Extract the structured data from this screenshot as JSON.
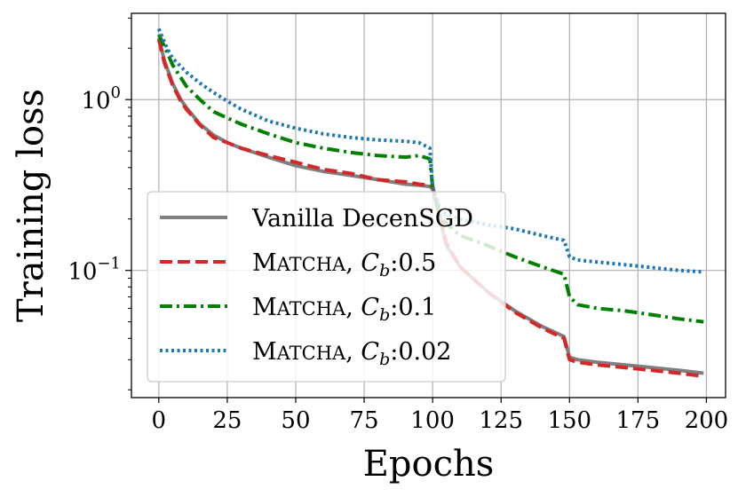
{
  "chart_data": {
    "type": "line",
    "title": "",
    "xlabel": "Epochs",
    "ylabel": "Training loss",
    "xlim": [
      -10,
      207
    ],
    "ylim": [
      0.018,
      3.2
    ],
    "yscale": "log",
    "grid": true,
    "x_ticks": [
      0,
      25,
      50,
      75,
      100,
      125,
      150,
      175,
      200
    ],
    "x_tick_labels": [
      "0",
      "25",
      "50",
      "75",
      "100",
      "125",
      "150",
      "175",
      "200"
    ],
    "y_ticks": [
      {
        "value": 1.0,
        "base": "10",
        "exponent": "0"
      },
      {
        "value": 0.1,
        "base": "10",
        "exponent": "−1"
      }
    ],
    "legend": {
      "position": "lower-left",
      "entries": [
        {
          "label": "Vanilla DecenSGD",
          "name_lead": "",
          "name_caps": "",
          "param": ""
        },
        {
          "label": "MATCHA, Cb:0.5",
          "name_lead": "M",
          "name_caps": "ATCHA",
          "param": ":0.5"
        },
        {
          "label": "MATCHA, Cb:0.1",
          "name_lead": "M",
          "name_caps": "ATCHA",
          "param": ":0.1"
        },
        {
          "label": "MATCHA, Cb:0.02",
          "name_lead": "M",
          "name_caps": "ATCHA",
          "param": ":0.02"
        }
      ]
    },
    "series": [
      {
        "name": "Vanilla DecenSGD",
        "color": "#7f7f7f",
        "style": "solid",
        "x": [
          0,
          2,
          5,
          8,
          10,
          15,
          20,
          25,
          30,
          40,
          50,
          60,
          70,
          80,
          90,
          95,
          99,
          100,
          105,
          110,
          120,
          130,
          140,
          148,
          150,
          153,
          160,
          170,
          180,
          190,
          199
        ],
        "y": [
          2.3,
          1.7,
          1.25,
          1.0,
          0.9,
          0.72,
          0.62,
          0.56,
          0.52,
          0.46,
          0.41,
          0.38,
          0.36,
          0.34,
          0.32,
          0.315,
          0.31,
          0.3,
          0.14,
          0.105,
          0.075,
          0.058,
          0.047,
          0.041,
          0.031,
          0.03,
          0.029,
          0.028,
          0.027,
          0.026,
          0.025
        ]
      },
      {
        "name": "MATCHA, Cb:0.5",
        "color": "#d62728",
        "style": "dashed",
        "x": [
          0,
          2,
          5,
          8,
          10,
          15,
          20,
          25,
          30,
          40,
          50,
          60,
          70,
          80,
          90,
          95,
          99,
          100,
          105,
          110,
          120,
          130,
          140,
          148,
          150,
          153,
          160,
          170,
          180,
          190,
          199
        ],
        "y": [
          2.25,
          1.65,
          1.22,
          0.98,
          0.88,
          0.71,
          0.6,
          0.56,
          0.52,
          0.47,
          0.43,
          0.39,
          0.37,
          0.34,
          0.33,
          0.32,
          0.315,
          0.31,
          0.145,
          0.105,
          0.075,
          0.057,
          0.046,
          0.04,
          0.03,
          0.029,
          0.028,
          0.027,
          0.026,
          0.025,
          0.024
        ]
      },
      {
        "name": "MATCHA, Cb:0.1",
        "color": "#008000",
        "style": "dashdot",
        "x": [
          0,
          3,
          5,
          10,
          15,
          20,
          25,
          30,
          40,
          50,
          60,
          70,
          80,
          90,
          95,
          99,
          100,
          103,
          110,
          120,
          130,
          140,
          148,
          150,
          153,
          160,
          170,
          180,
          190,
          199
        ],
        "y": [
          2.4,
          1.9,
          1.6,
          1.2,
          1.0,
          0.85,
          0.78,
          0.72,
          0.63,
          0.56,
          0.52,
          0.49,
          0.47,
          0.46,
          0.47,
          0.45,
          0.31,
          0.2,
          0.16,
          0.14,
          0.12,
          0.105,
          0.095,
          0.07,
          0.063,
          0.06,
          0.058,
          0.055,
          0.052,
          0.05
        ]
      },
      {
        "name": "MATCHA, Cb:0.02",
        "color": "#1f77b4",
        "style": "dotted",
        "x": [
          0,
          3,
          5,
          10,
          15,
          20,
          25,
          30,
          40,
          50,
          60,
          70,
          80,
          90,
          95,
          99,
          100,
          103,
          110,
          120,
          130,
          140,
          148,
          150,
          153,
          160,
          170,
          180,
          190,
          199
        ],
        "y": [
          2.6,
          2.0,
          1.75,
          1.45,
          1.25,
          1.1,
          0.98,
          0.88,
          0.75,
          0.68,
          0.63,
          0.6,
          0.58,
          0.57,
          0.56,
          0.52,
          0.31,
          0.22,
          0.2,
          0.185,
          0.175,
          0.16,
          0.15,
          0.12,
          0.115,
          0.112,
          0.108,
          0.104,
          0.1,
          0.098
        ]
      }
    ]
  }
}
